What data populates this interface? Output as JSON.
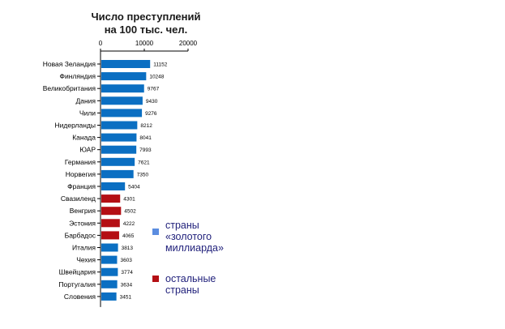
{
  "chart_data": {
    "type": "bar",
    "orientation": "horizontal",
    "title": "Число преступлений на 100 тыс. чел.",
    "title_lines": [
      "Число преступлений",
      "на 100 тыс. чел."
    ],
    "xlim": [
      0,
      20000
    ],
    "ticks": [
      0,
      10000,
      20000
    ],
    "tick_labels": [
      "0",
      "10000",
      "20000"
    ],
    "axis_position": "top",
    "grid": false,
    "legend_position": "right",
    "categories": [
      "Новая Зеландия",
      "Финляндия",
      "Великобритания",
      "Дания",
      "Чили",
      "Нидерланды",
      "Канада",
      "ЮАР",
      "Германия",
      "Норвегия",
      "Франция",
      "Свазиленд",
      "Венгрия",
      "Эстония",
      "Барбадос",
      "Италия",
      "Чехия",
      "Швейцария",
      "Португалия",
      "Словения"
    ],
    "values": [
      11152,
      10248,
      9767,
      9430,
      9276,
      8212,
      8041,
      7993,
      7621,
      7350,
      5404,
      4301,
      4502,
      4222,
      4065,
      3813,
      3603,
      3774,
      3634,
      3451
    ],
    "value_labels": [
      "11152",
      "10248",
      "9767",
      "9430",
      "9276",
      "8212",
      "8041",
      "7993",
      "7621",
      "7350",
      "5404",
      "4301",
      "4502",
      "4222",
      "4065",
      "3813",
      "3603",
      "3774",
      "3634",
      "3451"
    ],
    "groups": [
      "golden",
      "golden",
      "golden",
      "golden",
      "golden",
      "golden",
      "golden",
      "golden",
      "golden",
      "golden",
      "golden",
      "other",
      "other",
      "other",
      "other",
      "golden",
      "golden",
      "golden",
      "golden",
      "golden"
    ],
    "group_colors": {
      "golden": "#0B6FC2",
      "other": "#B40F14"
    },
    "legend": [
      {
        "group": "golden",
        "lines": [
          "страны",
          "«золотого",
          "миллиарда»"
        ],
        "color": "#5B8DE0"
      },
      {
        "group": "other",
        "lines": [
          "остальные",
          "страны"
        ],
        "color": "#B40F14"
      }
    ]
  }
}
